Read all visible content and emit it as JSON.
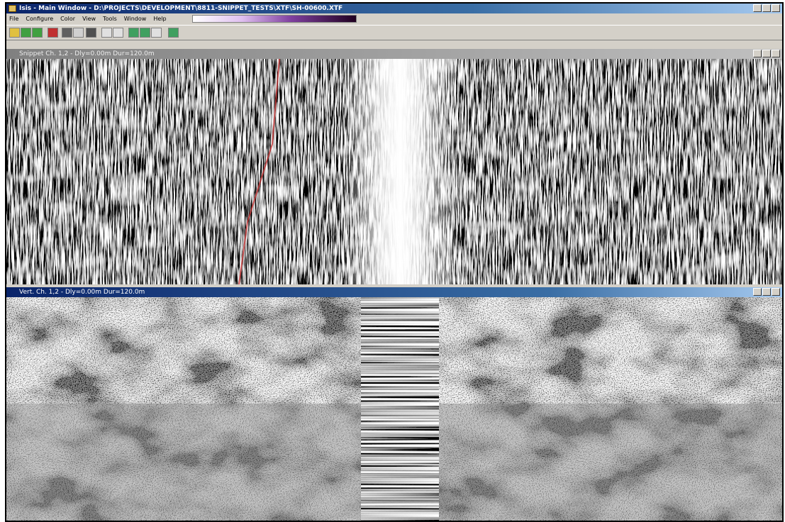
{
  "window": {
    "title": "Isis - Main Window - D:\\PROJECTS\\DEVELOPMENT\\8811-SNIPPET_TESTS\\XTF\\SH-00600.XTF",
    "menu": [
      "File",
      "Configure",
      "Color",
      "View",
      "Tools",
      "Window",
      "Help"
    ]
  },
  "panels": [
    {
      "title": "Snippet Ch. 1,2 - Dly=0.00m Dur=120.0m"
    },
    {
      "title": "Vert. Ch. 1,2 - Dly=0.00m Dur=120.0m"
    }
  ]
}
